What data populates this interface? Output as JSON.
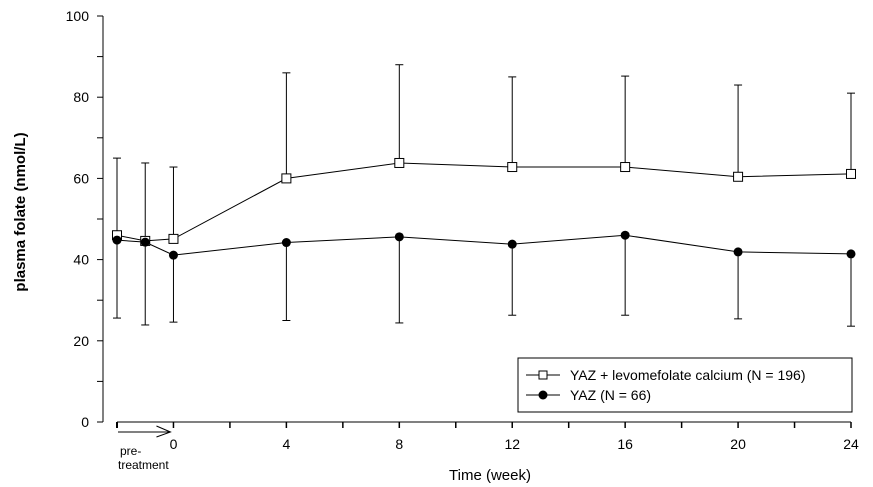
{
  "chart_data": {
    "type": "line",
    "title": "",
    "xlabel": "Time (week)",
    "ylabel": "plasma folate (nmol/L)",
    "ylim": [
      0,
      100
    ],
    "xlim": [
      -2,
      24
    ],
    "y_major_ticks": [
      0,
      20,
      40,
      60,
      80,
      100
    ],
    "y_minor_ticks": [
      10,
      30,
      50,
      70,
      90
    ],
    "x_ticks": [
      -2,
      0,
      2,
      4,
      6,
      8,
      10,
      12,
      14,
      16,
      18,
      20,
      22,
      24
    ],
    "x_tick_labels": [
      {
        "x": 0,
        "label": "0"
      },
      {
        "x": 4,
        "label": "4"
      },
      {
        "x": 8,
        "label": "8"
      },
      {
        "x": 12,
        "label": "12"
      },
      {
        "x": 16,
        "label": "16"
      },
      {
        "x": 20,
        "label": "20"
      },
      {
        "x": 24,
        "label": "24"
      }
    ],
    "annotation": {
      "line1": "pre-",
      "line2": "treatment",
      "arrow_from": -2,
      "arrow_to": 0
    },
    "grid": false,
    "legend_position": "bottom-right",
    "series": [
      {
        "name": "YAZ + levomefolate calcium (N = 196)",
        "marker": "open-square",
        "error_direction": "up",
        "x": [
          -2,
          -1,
          0,
          4,
          8,
          12,
          16,
          20,
          24
        ],
        "values": [
          46.0,
          44.6,
          45.1,
          60.0,
          63.8,
          62.8,
          62.8,
          60.4,
          61.1
        ],
        "error_bound": [
          65.0,
          63.8,
          62.8,
          86.0,
          88.0,
          85.0,
          85.2,
          83.0,
          81.0
        ]
      },
      {
        "name": "YAZ (N = 66)",
        "marker": "filled-circle",
        "error_direction": "down",
        "x": [
          -2,
          -1,
          0,
          4,
          8,
          12,
          16,
          20,
          24
        ],
        "values": [
          44.8,
          44.3,
          41.1,
          44.2,
          45.6,
          43.8,
          46.0,
          41.9,
          41.4
        ],
        "error_bound": [
          25.6,
          23.9,
          24.6,
          25.0,
          24.4,
          26.3,
          26.3,
          25.4,
          23.6
        ]
      }
    ]
  }
}
